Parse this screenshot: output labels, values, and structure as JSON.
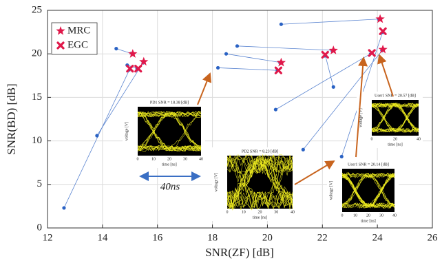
{
  "chart_data": {
    "type": "scatter",
    "xlabel": "SNR(ZF) [dB]",
    "ylabel": "SNR(BD) [dB]",
    "xlim": [
      12,
      26
    ],
    "ylim": [
      0,
      25
    ],
    "xticks": [
      12,
      14,
      16,
      18,
      20,
      22,
      24,
      26
    ],
    "yticks": [
      0,
      5,
      10,
      15,
      20,
      25
    ],
    "grid": true,
    "legend": "upper left",
    "series": [
      {
        "marker": "dot",
        "color": "#2a62c4",
        "x": [
          14.5,
          13.8,
          18.5,
          18.9,
          20.5,
          21.3,
          12.6,
          14.9,
          18.2,
          22.4,
          20.3,
          22.7
        ],
        "y": [
          20.6,
          10.6,
          20.0,
          20.9,
          23.4,
          9.0,
          2.3,
          18.7,
          18.4,
          16.2,
          13.6,
          8.2
        ]
      },
      {
        "name": "MRC",
        "marker": "star",
        "color": "#e0184a",
        "x": [
          15.1,
          15.5,
          20.5,
          22.4,
          24.1,
          24.2
        ],
        "y": [
          20.0,
          19.1,
          19.0,
          20.4,
          24.0,
          20.5
        ]
      },
      {
        "name": "EGC",
        "marker": "cross",
        "color": "#e0184a",
        "x": [
          15.0,
          15.3,
          20.4,
          22.1,
          23.8,
          24.2
        ],
        "y": [
          18.3,
          18.3,
          18.1,
          19.9,
          20.1,
          22.6
        ]
      }
    ],
    "annotations": [
      "40ns"
    ],
    "insets": [
      {
        "title": "PD1 SNR = 18.38 [dB]",
        "xlabel": "time [ns]",
        "ylabel": "voltage [V]",
        "xlim": [
          0,
          40
        ],
        "xticks": [
          0,
          10,
          20,
          30,
          40
        ]
      },
      {
        "title": "PD2 SNR = 8.23 [dB]",
        "xlabel": "time [ns]",
        "ylabel": "voltage [V]",
        "xlim": [
          0,
          40
        ],
        "xticks": [
          0,
          10,
          20,
          30,
          40
        ]
      },
      {
        "title": "User1 SNR = 20.57 [dB]",
        "xlabel": "time [ns]",
        "ylabel": "voltage [V]",
        "xlim": [
          0,
          40
        ],
        "xticks": [
          0,
          20,
          40
        ]
      },
      {
        "title": "User1 SNR = 20.14 [dB]",
        "xlabel": "time [ns]",
        "ylabel": "voltage [V]",
        "xlim": [
          0,
          40
        ],
        "xticks": [
          0,
          10,
          20,
          30,
          40
        ]
      }
    ]
  }
}
